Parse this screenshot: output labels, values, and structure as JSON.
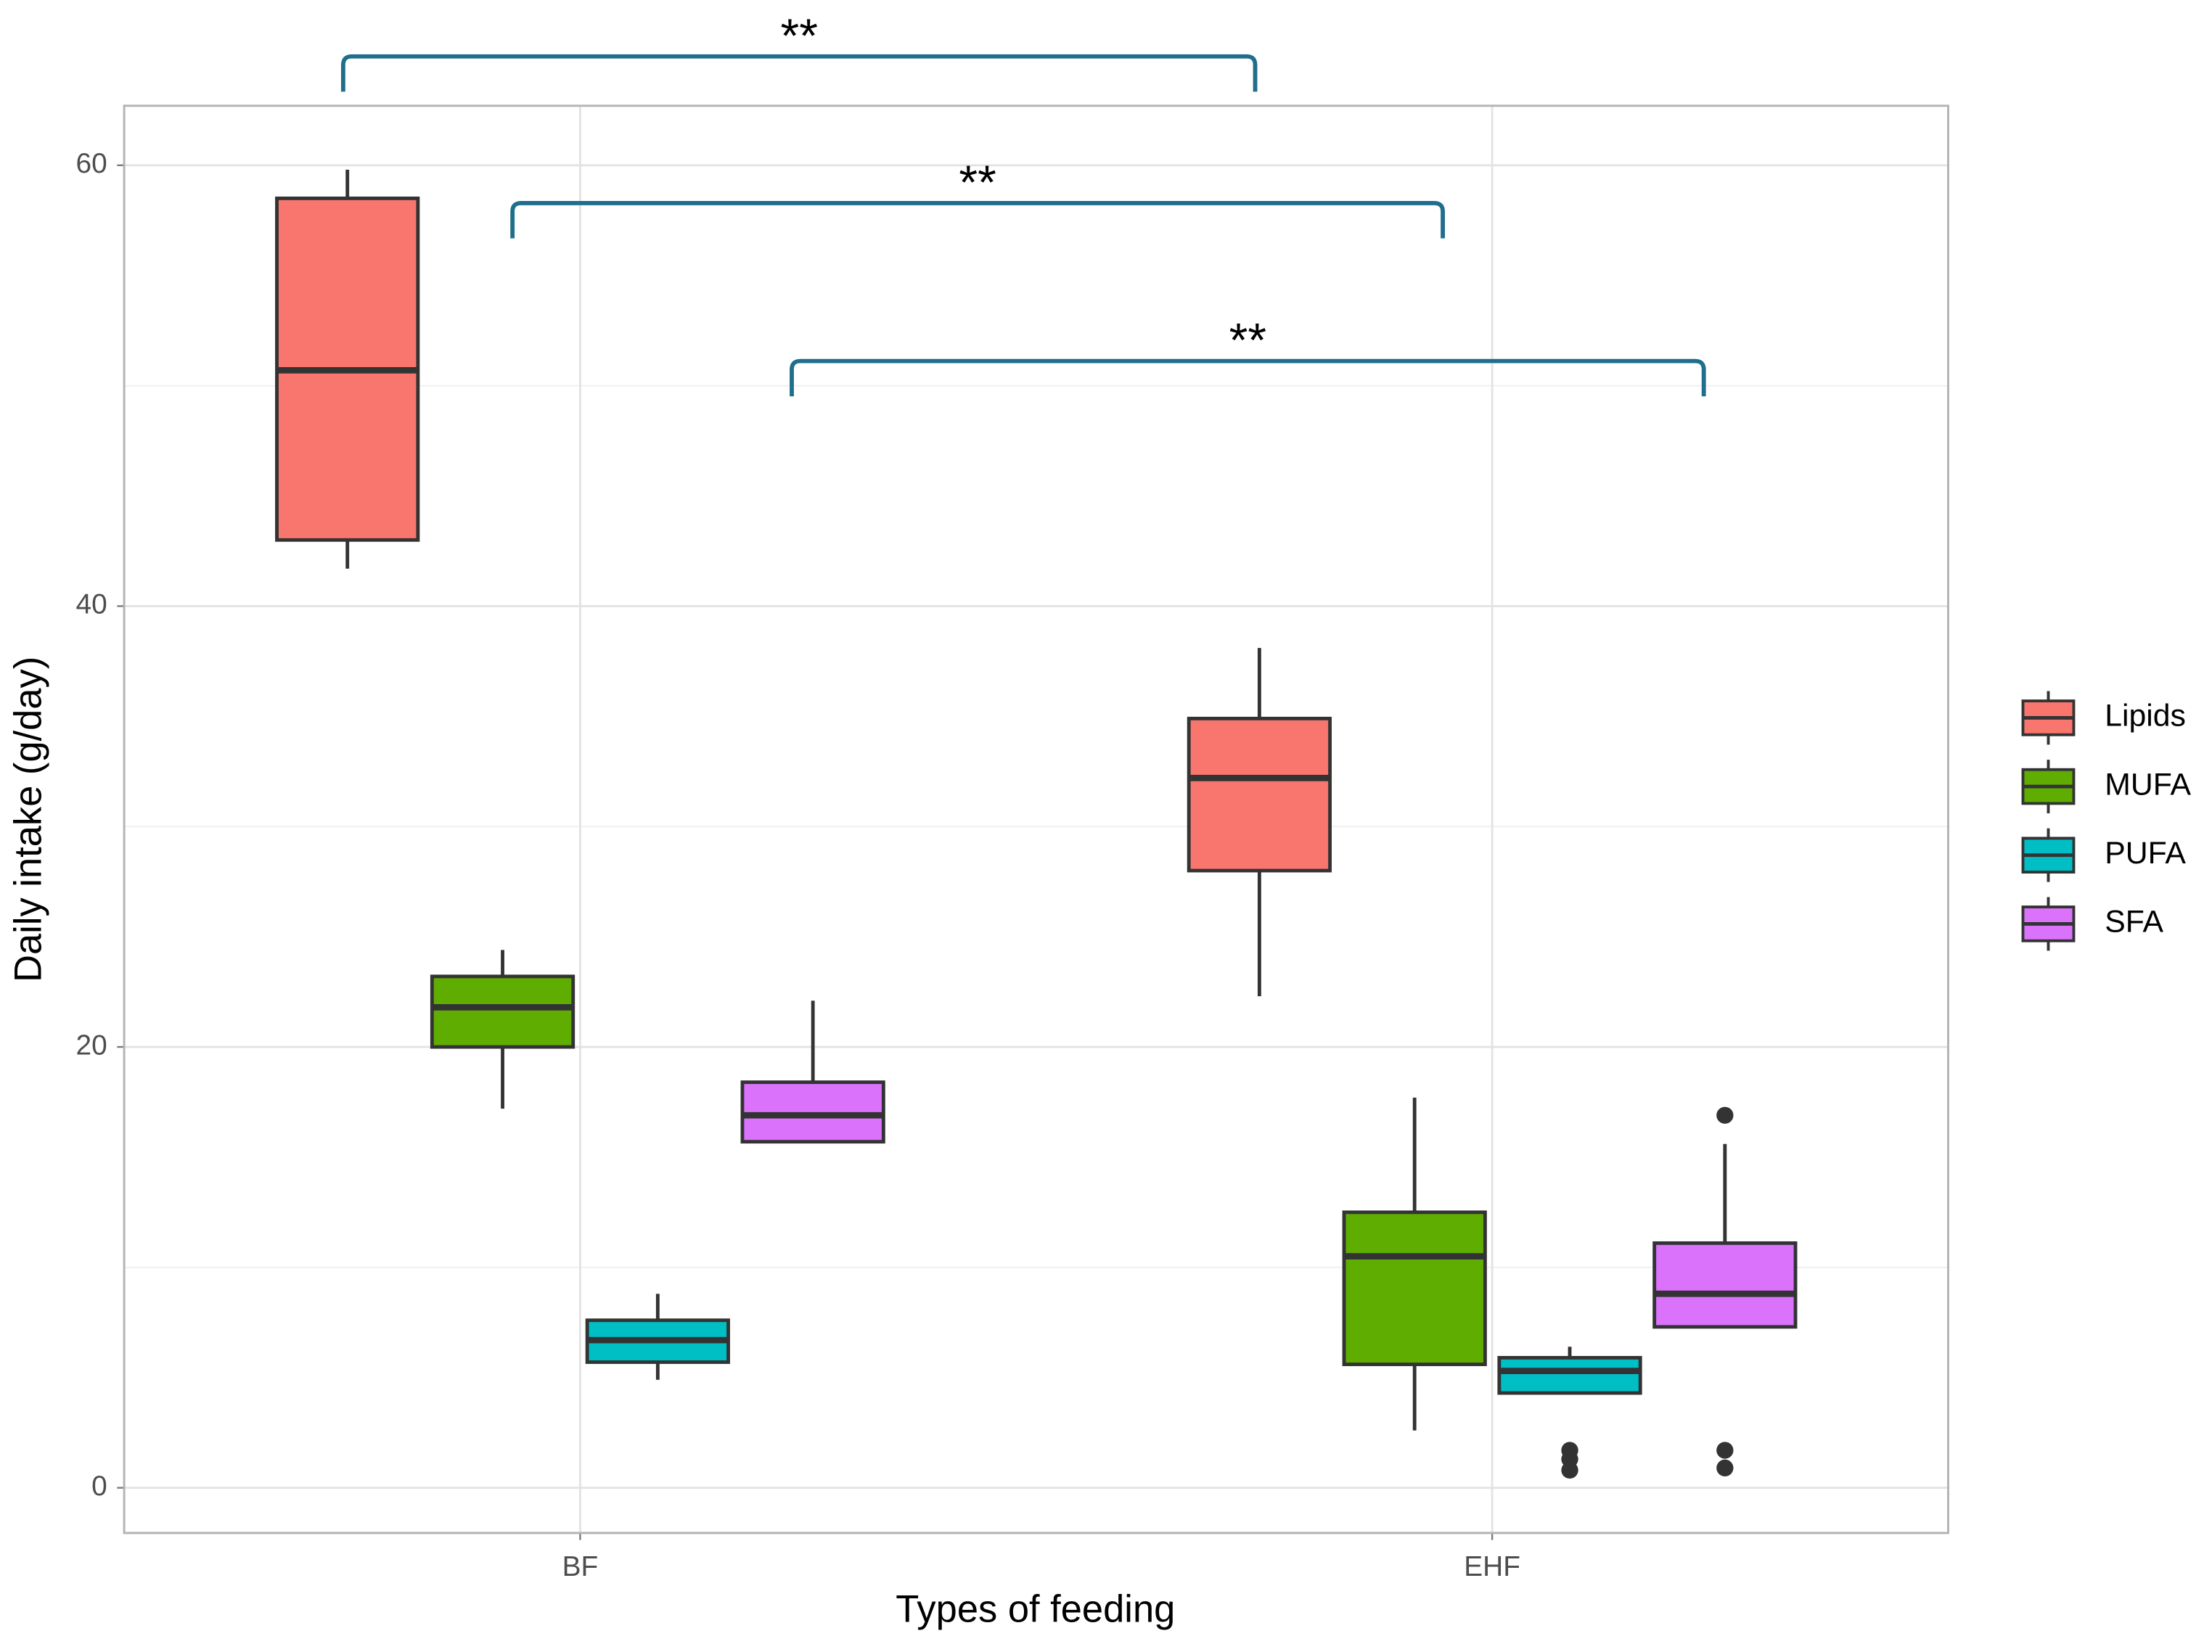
{
  "chart_data": {
    "type": "boxplot",
    "x_label": "Types of feeding",
    "y_label": "Daily intake (g/day)",
    "categories": [
      "BF",
      "EHF"
    ],
    "ylim": [
      -2.05,
      62.7
    ],
    "yticks": [
      0,
      20,
      40,
      60
    ],
    "minor_yticks": [
      10,
      30,
      50
    ],
    "grid": true,
    "legend": "right",
    "series": [
      {
        "name": "Lipids",
        "color": "#F8766D",
        "values": [
          {
            "min": 41.7,
            "q1": 43.0,
            "median": 50.7,
            "q3": 58.5,
            "max": 59.8,
            "outliers": []
          },
          {
            "min": 22.3,
            "q1": 28.0,
            "median": 32.2,
            "q3": 34.9,
            "max": 38.1,
            "outliers": []
          }
        ]
      },
      {
        "name": "MUFA",
        "color": "#5FAD00",
        "values": [
          {
            "min": 17.2,
            "q1": 20.0,
            "median": 21.8,
            "q3": 23.2,
            "max": 24.4,
            "outliers": []
          },
          {
            "min": 2.6,
            "q1": 5.6,
            "median": 10.5,
            "q3": 12.5,
            "max": 17.7,
            "outliers": []
          }
        ]
      },
      {
        "name": "PUFA",
        "color": "#00BFC4",
        "values": [
          {
            "min": 4.9,
            "q1": 5.7,
            "median": 6.7,
            "q3": 7.6,
            "max": 8.8,
            "outliers": []
          },
          {
            "min": 4.3,
            "q1": 4.3,
            "median": 5.3,
            "q3": 5.9,
            "max": 6.4,
            "outliers": [
              1.7,
              1.3,
              0.8
            ]
          }
        ]
      },
      {
        "name": "SFA",
        "color": "#DB72FB",
        "values": [
          {
            "min": 15.7,
            "q1": 15.7,
            "median": 16.9,
            "q3": 18.4,
            "max": 22.1,
            "outliers": []
          },
          {
            "min": 7.3,
            "q1": 7.3,
            "median": 8.8,
            "q3": 11.1,
            "max": 15.6,
            "outliers": [
              16.9,
              1.7,
              0.9
            ]
          }
        ]
      }
    ],
    "annotations": [
      {
        "label": "**",
        "series": "Lipids"
      },
      {
        "label": "**",
        "series": "MUFA"
      },
      {
        "label": "**",
        "series": "SFA"
      }
    ]
  }
}
